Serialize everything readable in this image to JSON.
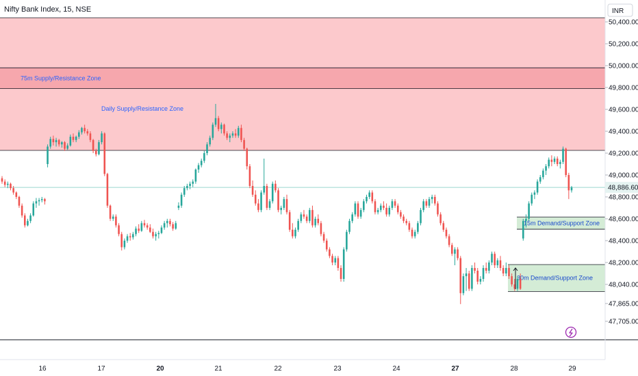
{
  "header": {
    "title": "Nifty Bank Index, 15, NSE",
    "currency": "INR"
  },
  "price_tag": {
    "value": "48,886.60"
  },
  "colors": {
    "up": "#26a69a",
    "down": "#ef5350",
    "supply_zone": "#fcc9cc",
    "supply_zone_75m": "#f6a7ad",
    "demand_zone": "#d4ecd6",
    "price_line": "#9bd7cf"
  },
  "icons": {
    "alert": "lightning-bolt-icon"
  },
  "zones": [
    {
      "label": "75m Supply/Resistance Zone",
      "top": 49980,
      "bottom": 49790,
      "type": "supply"
    },
    {
      "label": "Daily Supply/Resistance Zone",
      "top": 50440,
      "bottom": 49225,
      "type": "supply"
    },
    {
      "label": "15m Demand/Support Zone",
      "top": 48615,
      "bottom": 48505,
      "type": "demand"
    },
    {
      "label": "30m Demand/Support Zone",
      "top": 48185,
      "bottom": 47975,
      "type": "demand"
    }
  ],
  "chart_data": {
    "type": "candlestick",
    "title": "Nifty Bank Index, 15, NSE",
    "currency": "INR",
    "last_price": 48886.6,
    "y_ticks": [
      50400,
      50200,
      50000,
      49800,
      49600,
      49400,
      49200,
      49000,
      48800,
      48600,
      48400,
      48200,
      48040,
      47865,
      47705
    ],
    "y_tick_labels": [
      "50,400.00",
      "50,200.00",
      "50,000.00",
      "49,800.00",
      "49,600.00",
      "49,400.00",
      "49,200.00",
      "49,000.00",
      "48,800.00",
      "48,600.00",
      "48,400.00",
      "48,200.00",
      "48,040.00",
      "47,865.00",
      "47,705.00"
    ],
    "x_labels": [
      "16",
      "17",
      "20",
      "21",
      "22",
      "23",
      "24",
      "27",
      "28",
      "29"
    ],
    "bold_x_labels": [
      "20",
      "27"
    ],
    "candles": [
      [
        48970,
        48990,
        48920,
        48940
      ],
      [
        48940,
        48960,
        48890,
        48910
      ],
      [
        48910,
        48940,
        48880,
        48920
      ],
      [
        48920,
        48930,
        48860,
        48880
      ],
      [
        48880,
        48900,
        48820,
        48840
      ],
      [
        48840,
        48850,
        48780,
        48800
      ],
      [
        48800,
        48810,
        48700,
        48720
      ],
      [
        48720,
        48740,
        48610,
        48630
      ],
      [
        48630,
        48650,
        48520,
        48540
      ],
      [
        48540,
        48600,
        48530,
        48580
      ],
      [
        48580,
        48650,
        48560,
        48630
      ],
      [
        48630,
        48760,
        48620,
        48740
      ],
      [
        48740,
        48790,
        48700,
        48760
      ],
      [
        48760,
        48790,
        48720,
        48770
      ],
      [
        48770,
        48800,
        48750,
        48780
      ],
      [
        48780,
        48790,
        48730,
        48760
      ],
      [
        49100,
        49280,
        49070,
        49260
      ],
      [
        49260,
        49350,
        49240,
        49330
      ],
      [
        49330,
        49360,
        49270,
        49300
      ],
      [
        49300,
        49340,
        49260,
        49320
      ],
      [
        49320,
        49330,
        49260,
        49280
      ],
      [
        49280,
        49310,
        49250,
        49300
      ],
      [
        49300,
        49310,
        49220,
        49240
      ],
      [
        49240,
        49290,
        49230,
        49270
      ],
      [
        49270,
        49370,
        49260,
        49350
      ],
      [
        49350,
        49380,
        49300,
        49320
      ],
      [
        49320,
        49360,
        49300,
        49350
      ],
      [
        49350,
        49410,
        49330,
        49390
      ],
      [
        49390,
        49440,
        49370,
        49430
      ],
      [
        49430,
        49460,
        49380,
        49400
      ],
      [
        49400,
        49420,
        49360,
        49380
      ],
      [
        49380,
        49400,
        49300,
        49320
      ],
      [
        49320,
        49330,
        49200,
        49220
      ],
      [
        49220,
        49240,
        49170,
        49190
      ],
      [
        49190,
        49320,
        49180,
        49300
      ],
      [
        49300,
        49400,
        49280,
        49380
      ],
      [
        49380,
        49390,
        48990,
        49010
      ],
      [
        49010,
        49020,
        48700,
        48720
      ],
      [
        48720,
        48730,
        48580,
        48600
      ],
      [
        48600,
        48640,
        48580,
        48620
      ],
      [
        48620,
        48640,
        48520,
        48540
      ],
      [
        48540,
        48560,
        48440,
        48460
      ],
      [
        48460,
        48480,
        48310,
        48340
      ],
      [
        48340,
        48420,
        48320,
        48400
      ],
      [
        48400,
        48460,
        48380,
        48440
      ],
      [
        48440,
        48470,
        48400,
        48430
      ],
      [
        48430,
        48480,
        48410,
        48460
      ],
      [
        48460,
        48530,
        48440,
        48510
      ],
      [
        48510,
        48550,
        48470,
        48490
      ],
      [
        48490,
        48580,
        48480,
        48560
      ],
      [
        48560,
        48590,
        48520,
        48540
      ],
      [
        48540,
        48560,
        48500,
        48520
      ],
      [
        48520,
        48550,
        48470,
        48480
      ],
      [
        48480,
        48510,
        48420,
        48440
      ],
      [
        48440,
        48480,
        48400,
        48460
      ],
      [
        48460,
        48490,
        48420,
        48470
      ],
      [
        48470,
        48540,
        48460,
        48520
      ],
      [
        48520,
        48580,
        48500,
        48560
      ],
      [
        48560,
        48600,
        48520,
        48580
      ],
      [
        48580,
        48600,
        48530,
        48550
      ],
      [
        48550,
        48570,
        48490,
        48510
      ],
      [
        48510,
        48580,
        48500,
        48560
      ],
      [
        48700,
        48750,
        48680,
        48720
      ],
      [
        48720,
        48840,
        48700,
        48820
      ],
      [
        48820,
        48900,
        48800,
        48880
      ],
      [
        48880,
        48920,
        48860,
        48900
      ],
      [
        48900,
        48940,
        48870,
        48920
      ],
      [
        48920,
        48960,
        48890,
        48940
      ],
      [
        48940,
        49060,
        48920,
        49050
      ],
      [
        49050,
        49110,
        49020,
        49090
      ],
      [
        49090,
        49150,
        49070,
        49130
      ],
      [
        49130,
        49220,
        49110,
        49200
      ],
      [
        49200,
        49300,
        49180,
        49280
      ],
      [
        49280,
        49360,
        49260,
        49340
      ],
      [
        49340,
        49480,
        49320,
        49460
      ],
      [
        49460,
        49650,
        49440,
        49520
      ],
      [
        49520,
        49540,
        49400,
        49420
      ],
      [
        49420,
        49480,
        49380,
        49460
      ],
      [
        49460,
        49470,
        49360,
        49380
      ],
      [
        49380,
        49400,
        49320,
        49340
      ],
      [
        49340,
        49380,
        49300,
        49360
      ],
      [
        49360,
        49400,
        49340,
        49380
      ],
      [
        49380,
        49420,
        49340,
        49360
      ],
      [
        49360,
        49450,
        49340,
        49430
      ],
      [
        49430,
        49460,
        49300,
        49320
      ],
      [
        49320,
        49340,
        49220,
        49240
      ],
      [
        49240,
        49250,
        49050,
        49080
      ],
      [
        49080,
        49100,
        48880,
        48900
      ],
      [
        48900,
        48950,
        48800,
        48820
      ],
      [
        48820,
        48860,
        48720,
        48740
      ],
      [
        48740,
        48780,
        48660,
        48680
      ],
      [
        48680,
        48860,
        48660,
        48840
      ],
      [
        48840,
        49150,
        48820,
        48900
      ],
      [
        48900,
        48920,
        48680,
        48700
      ],
      [
        48700,
        48780,
        48680,
        48760
      ],
      [
        48760,
        48940,
        48740,
        48920
      ],
      [
        48920,
        48950,
        48840,
        48860
      ],
      [
        48860,
        48880,
        48660,
        48680
      ],
      [
        48680,
        48720,
        48640,
        48700
      ],
      [
        48700,
        48800,
        48680,
        48780
      ],
      [
        48780,
        48820,
        48640,
        48660
      ],
      [
        48660,
        48680,
        48480,
        48500
      ],
      [
        48500,
        48560,
        48420,
        48440
      ],
      [
        48440,
        48520,
        48420,
        48500
      ],
      [
        48500,
        48600,
        48480,
        48580
      ],
      [
        48580,
        48660,
        48560,
        48640
      ],
      [
        48640,
        48680,
        48600,
        48620
      ],
      [
        48620,
        48640,
        48560,
        48580
      ],
      [
        48580,
        48700,
        48560,
        48680
      ],
      [
        48680,
        48720,
        48520,
        48540
      ],
      [
        48540,
        48620,
        48520,
        48600
      ],
      [
        48600,
        48640,
        48540,
        48560
      ],
      [
        48560,
        48580,
        48440,
        48460
      ],
      [
        48460,
        48480,
        48380,
        48400
      ],
      [
        48400,
        48420,
        48300,
        48320
      ],
      [
        48320,
        48340,
        48240,
        48260
      ],
      [
        48260,
        48280,
        48180,
        48200
      ],
      [
        48200,
        48260,
        48180,
        48240
      ],
      [
        48240,
        48260,
        48140,
        48160
      ],
      [
        48160,
        48180,
        48060,
        48080
      ],
      [
        48080,
        48340,
        48060,
        48320
      ],
      [
        48320,
        48500,
        48300,
        48480
      ],
      [
        48480,
        48600,
        48460,
        48580
      ],
      [
        48580,
        48660,
        48560,
        48640
      ],
      [
        48640,
        48760,
        48620,
        48740
      ],
      [
        48740,
        48760,
        48600,
        48620
      ],
      [
        48620,
        48700,
        48600,
        48680
      ],
      [
        48680,
        48780,
        48660,
        48760
      ],
      [
        48760,
        48820,
        48740,
        48800
      ],
      [
        48800,
        48860,
        48780,
        48840
      ],
      [
        48840,
        48860,
        48740,
        48760
      ],
      [
        48760,
        48780,
        48640,
        48660
      ],
      [
        48660,
        48700,
        48640,
        48680
      ],
      [
        48680,
        48740,
        48660,
        48720
      ],
      [
        48720,
        48760,
        48680,
        48700
      ],
      [
        48700,
        48740,
        48620,
        48640
      ],
      [
        48640,
        48720,
        48620,
        48700
      ],
      [
        48700,
        48780,
        48680,
        48760
      ],
      [
        48760,
        48780,
        48700,
        48720
      ],
      [
        48720,
        48740,
        48640,
        48660
      ],
      [
        48660,
        48680,
        48600,
        48620
      ],
      [
        48620,
        48640,
        48560,
        48580
      ],
      [
        48580,
        48600,
        48540,
        48560
      ],
      [
        48560,
        48580,
        48480,
        48500
      ],
      [
        48500,
        48520,
        48420,
        48440
      ],
      [
        48440,
        48500,
        48420,
        48480
      ],
      [
        48480,
        48580,
        48460,
        48560
      ],
      [
        48560,
        48700,
        48540,
        48680
      ],
      [
        48680,
        48780,
        48660,
        48760
      ],
      [
        48760,
        48780,
        48700,
        48720
      ],
      [
        48720,
        48800,
        48700,
        48780
      ],
      [
        48780,
        48820,
        48740,
        48800
      ],
      [
        48800,
        48820,
        48720,
        48740
      ],
      [
        48740,
        48760,
        48620,
        48640
      ],
      [
        48640,
        48660,
        48540,
        48560
      ],
      [
        48560,
        48580,
        48480,
        48500
      ],
      [
        48500,
        48520,
        48420,
        48440
      ],
      [
        48440,
        48460,
        48340,
        48360
      ],
      [
        48360,
        48380,
        48260,
        48280
      ],
      [
        48280,
        48340,
        48180,
        48320
      ],
      [
        48320,
        48340,
        48220,
        48240
      ],
      [
        48240,
        48260,
        47860,
        47960
      ],
      [
        47960,
        48120,
        47940,
        48100
      ],
      [
        48100,
        48160,
        47980,
        48120
      ],
      [
        48120,
        48140,
        47980,
        48000
      ],
      [
        48000,
        48180,
        47980,
        48160
      ],
      [
        48160,
        48200,
        48120,
        48140
      ],
      [
        48140,
        48160,
        48040,
        48060
      ],
      [
        48060,
        48100,
        48040,
        48080
      ],
      [
        48080,
        48180,
        48060,
        48160
      ],
      [
        48160,
        48200,
        48120,
        48140
      ],
      [
        48140,
        48220,
        48120,
        48200
      ],
      [
        48200,
        48300,
        48180,
        48280
      ],
      [
        48280,
        48300,
        48160,
        48180
      ],
      [
        48180,
        48240,
        48160,
        48220
      ],
      [
        48220,
        48260,
        48140,
        48160
      ],
      [
        48160,
        48180,
        48100,
        48120
      ],
      [
        48120,
        48200,
        48100,
        48160
      ],
      [
        48160,
        48180,
        48080,
        48100
      ],
      [
        48100,
        48120,
        48020,
        48040
      ],
      [
        48040,
        48080,
        47980,
        48000
      ],
      [
        48000,
        48100,
        47980,
        48080
      ],
      [
        48080,
        48120,
        47990,
        48000
      ],
      [
        48420,
        48600,
        48400,
        48580
      ],
      [
        48580,
        48640,
        48520,
        48600
      ],
      [
        48600,
        48760,
        48580,
        48740
      ],
      [
        48740,
        48840,
        48720,
        48820
      ],
      [
        48820,
        48860,
        48780,
        48840
      ],
      [
        48840,
        48960,
        48820,
        48940
      ],
      [
        48940,
        49000,
        48920,
        48980
      ],
      [
        48980,
        49060,
        48960,
        49040
      ],
      [
        49040,
        49100,
        49000,
        49080
      ],
      [
        49080,
        49160,
        49060,
        49140
      ],
      [
        49140,
        49180,
        49080,
        49120
      ],
      [
        49120,
        49170,
        49100,
        49150
      ],
      [
        49150,
        49170,
        49080,
        49100
      ],
      [
        49100,
        49140,
        49060,
        49120
      ],
      [
        49120,
        49260,
        49100,
        49240
      ],
      [
        49240,
        49250,
        48980,
        49000
      ],
      [
        49000,
        49020,
        48780,
        48860
      ],
      [
        48860,
        48900,
        48840,
        48886.6
      ]
    ]
  }
}
